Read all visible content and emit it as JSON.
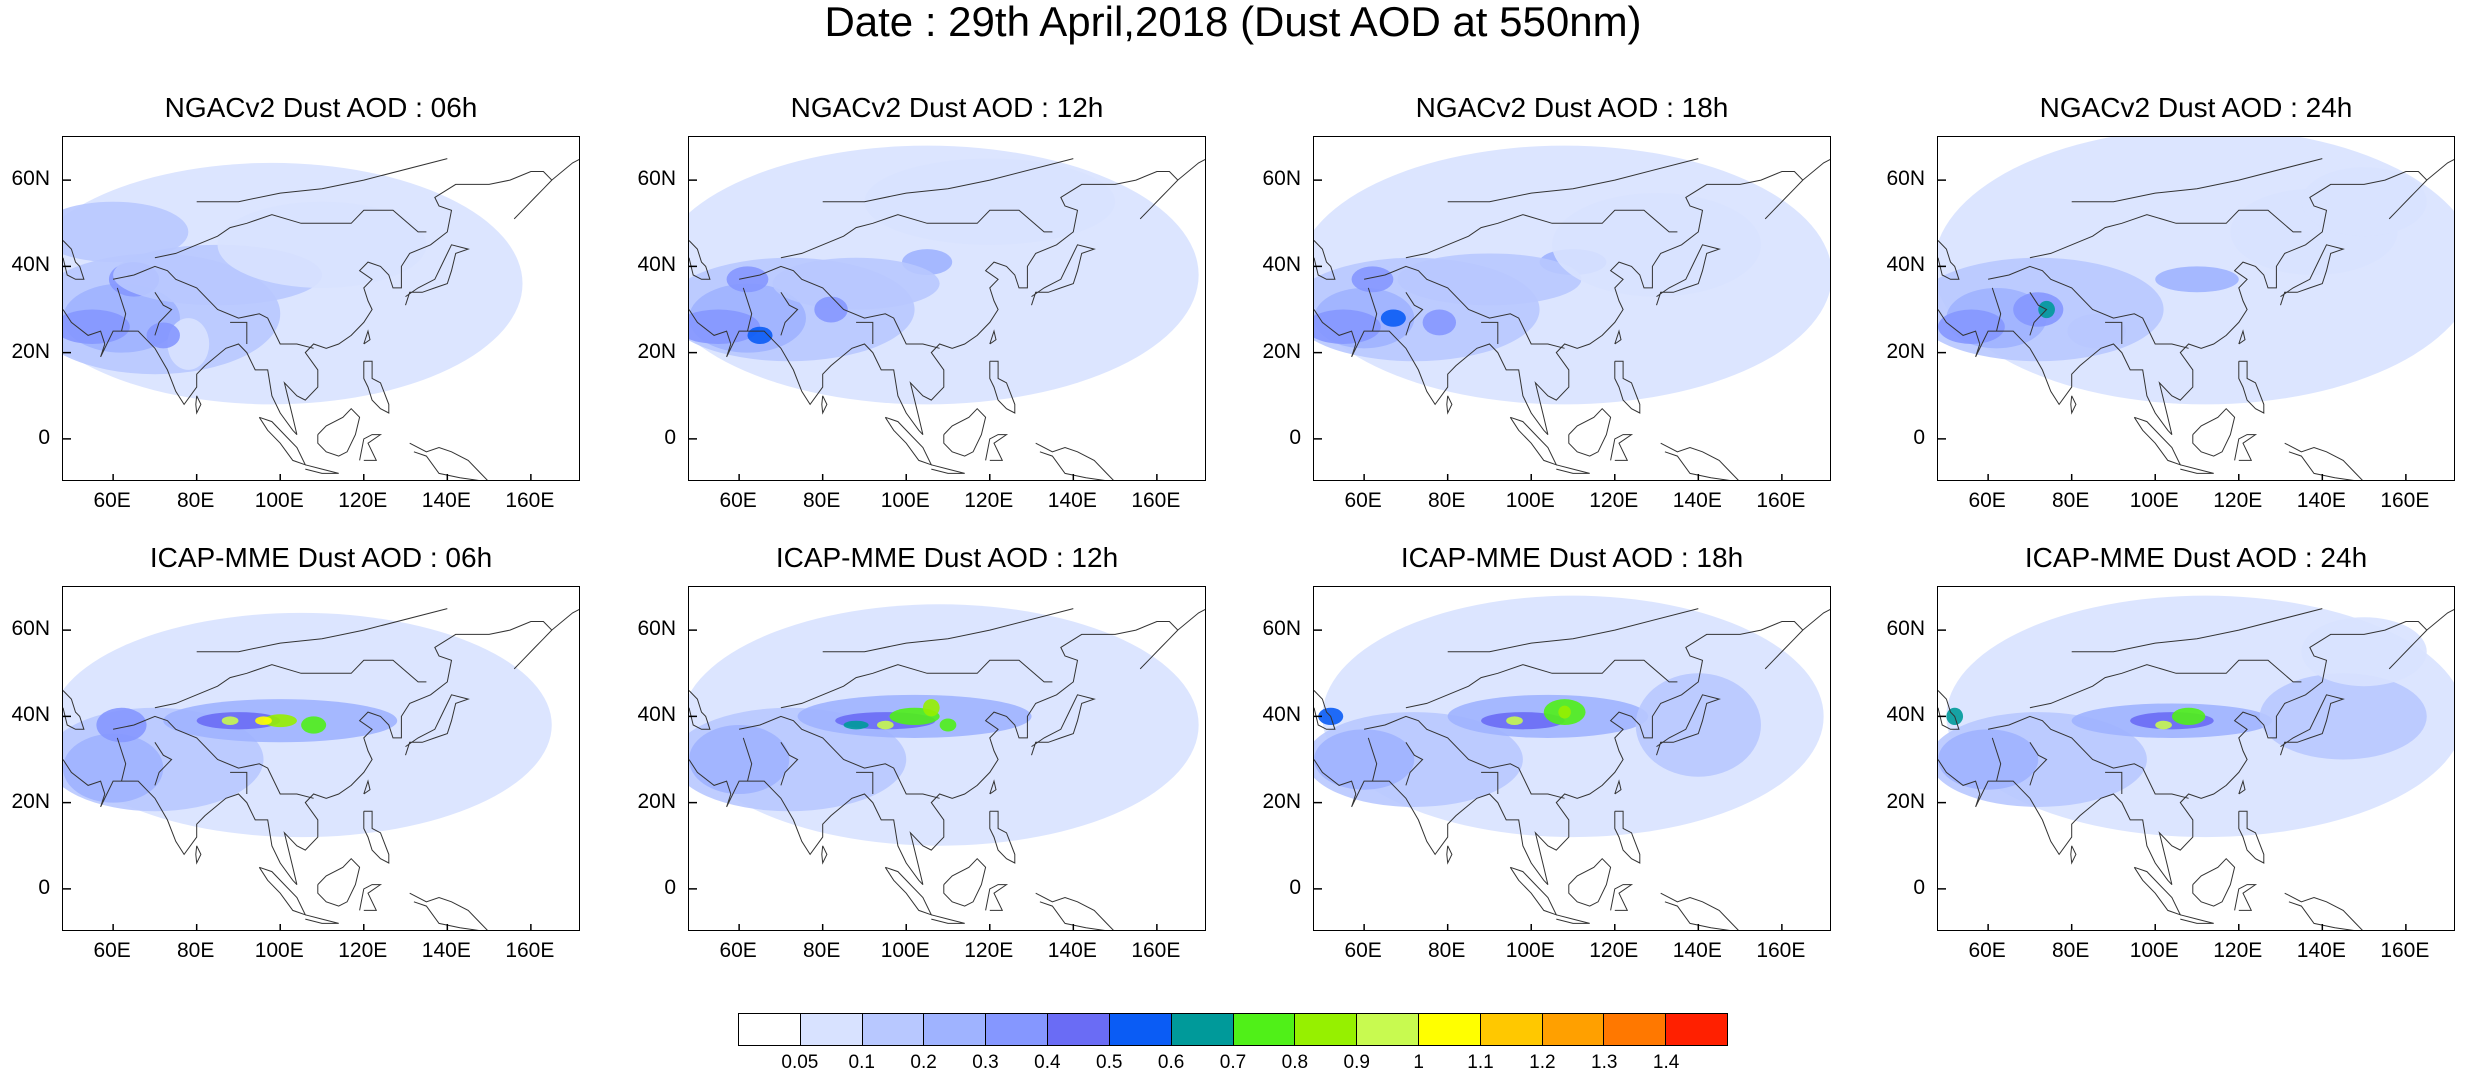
{
  "title": "Date : 29th April,2018 (Dust AOD at 550nm)",
  "map_data": {
    "type": "gridded-field-maps",
    "variable": "Dust AOD at 550nm",
    "lon_range_deg": [
      48,
      172
    ],
    "lat_range_deg": [
      -10,
      70
    ],
    "lon_ticks": [
      "60E",
      "80E",
      "100E",
      "120E",
      "140E",
      "160E"
    ],
    "lat_ticks": [
      "60N",
      "40N",
      "20N",
      "0"
    ],
    "panels": [
      {
        "title": "NGACv2 Dust AOD : 06h",
        "model": "NGACv2",
        "lead": "06h"
      },
      {
        "title": "NGACv2 Dust AOD : 12h",
        "model": "NGACv2",
        "lead": "12h"
      },
      {
        "title": "NGACv2 Dust AOD : 18h",
        "model": "NGACv2",
        "lead": "18h"
      },
      {
        "title": "NGACv2 Dust AOD : 24h",
        "model": "NGACv2",
        "lead": "24h"
      },
      {
        "title": "ICAP-MME Dust AOD : 06h",
        "model": "ICAP-MME",
        "lead": "06h"
      },
      {
        "title": "ICAP-MME Dust AOD : 12h",
        "model": "ICAP-MME",
        "lead": "12h"
      },
      {
        "title": "ICAP-MME Dust AOD : 18h",
        "model": "ICAP-MME",
        "lead": "18h"
      },
      {
        "title": "ICAP-MME Dust AOD : 24h",
        "model": "ICAP-MME",
        "lead": "24h"
      }
    ]
  },
  "colorbar": {
    "levels": [
      "0.05",
      "0.1",
      "0.2",
      "0.3",
      "0.4",
      "0.5",
      "0.6",
      "0.7",
      "0.8",
      "0.9",
      "1",
      "1.1",
      "1.2",
      "1.3",
      "1.4"
    ],
    "colors": [
      "#ffffff",
      "#d8e2ff",
      "#b8c8ff",
      "#9fb3ff",
      "#8597ff",
      "#6a6cf5",
      "#0a5cf5",
      "#009a9a",
      "#50f018",
      "#96f000",
      "#c8fa50",
      "#ffff00",
      "#ffc800",
      "#ffa000",
      "#ff7800",
      "#ff2000"
    ]
  }
}
